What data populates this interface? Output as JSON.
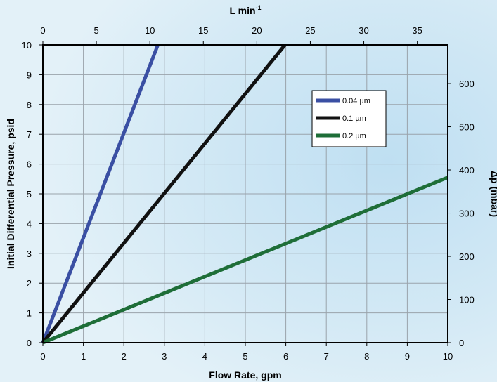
{
  "chart_data": {
    "type": "line",
    "title": "",
    "xlabel": "Flow Rate, gpm",
    "ylabel": "Initial Differential Pressure, psid",
    "x2label_main": "L min",
    "x2label_sup": "-1",
    "y2label": "Δp (mbar)",
    "xlim": [
      0,
      10
    ],
    "ylim": [
      0,
      10
    ],
    "x2lim": [
      0,
      37.85
    ],
    "y2lim": [
      0,
      689.5
    ],
    "xticks": [
      "0",
      "1",
      "2",
      "3",
      "4",
      "5",
      "6",
      "7",
      "8",
      "9",
      "10"
    ],
    "yticks": [
      "0",
      "1",
      "2",
      "3",
      "4",
      "5",
      "6",
      "7",
      "8",
      "9",
      "10"
    ],
    "x2ticks": [
      "0",
      "5",
      "10",
      "15",
      "20",
      "25",
      "30",
      "35"
    ],
    "y2ticks": [
      "0",
      "100",
      "200",
      "300",
      "400",
      "500",
      "600"
    ],
    "grid": true,
    "legend_position": "top-right",
    "series": [
      {
        "name": "0.04 µm",
        "color": "#3a4fa3",
        "x": [
          0,
          2.84
        ],
        "y": [
          0,
          10
        ]
      },
      {
        "name": "0.1 µm",
        "color": "#111111",
        "x": [
          0,
          5.98
        ],
        "y": [
          0,
          10
        ]
      },
      {
        "name": "0.2 µm",
        "color": "#1e6e38",
        "x": [
          0,
          10
        ],
        "y": [
          0,
          5.55
        ]
      }
    ]
  }
}
